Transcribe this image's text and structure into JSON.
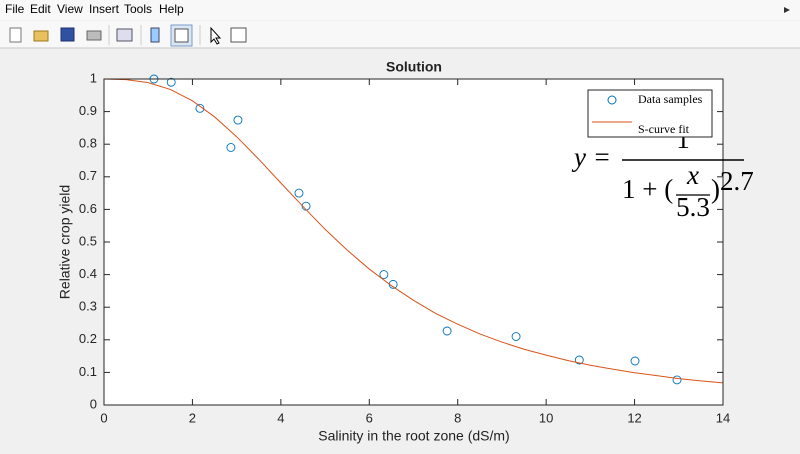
{
  "window": {
    "menu": [
      "File",
      "Edit",
      "View",
      "Insert",
      "Tools",
      "Help"
    ]
  },
  "chart_data": {
    "type": "scatter",
    "title": "Solution",
    "xlabel": "Salinity in the root zone (dS/m)",
    "ylabel": "Relative crop yield",
    "xlim": [
      0,
      14
    ],
    "ylim": [
      0,
      1
    ],
    "xticks": [
      0,
      2,
      4,
      6,
      8,
      10,
      12,
      14
    ],
    "yticks": [
      0,
      0.1,
      0.2,
      0.3,
      0.4,
      0.5,
      0.6,
      0.7,
      0.8,
      0.9,
      1
    ],
    "legend": "top-right",
    "series": [
      {
        "name": "Data samples",
        "type": "scatter",
        "color": "#0072bd",
        "x": [
          1.13,
          1.52,
          2.17,
          2.87,
          3.03,
          4.41,
          4.57,
          6.33,
          6.54,
          7.76,
          9.32,
          10.75,
          12.01,
          12.96
        ],
        "values": [
          1.0,
          0.99,
          0.91,
          0.79,
          0.874,
          0.65,
          0.61,
          0.4,
          0.37,
          0.227,
          0.21,
          0.138,
          0.135,
          0.077
        ]
      },
      {
        "name": "S-curve fit",
        "type": "line",
        "color": "#d95319",
        "x": [
          0,
          0.5,
          1,
          1.5,
          2,
          2.5,
          3,
          3.5,
          4,
          4.5,
          5,
          5.5,
          6,
          6.5,
          7,
          7.5,
          8,
          8.5,
          9,
          9.5,
          10,
          10.5,
          11,
          11.5,
          12,
          12.5,
          13,
          13.5,
          14
        ],
        "values": [
          1,
          0.998,
          0.989,
          0.968,
          0.933,
          0.884,
          0.823,
          0.754,
          0.681,
          0.609,
          0.539,
          0.475,
          0.417,
          0.366,
          0.321,
          0.281,
          0.248,
          0.218,
          0.193,
          0.171,
          0.153,
          0.136,
          0.122,
          0.11,
          0.099,
          0.09,
          0.081,
          0.074,
          0.068
        ]
      }
    ],
    "annotation": [
      "y =",
      "1",
      "1 + (",
      "x",
      "5.3",
      ")",
      "2.7"
    ]
  }
}
